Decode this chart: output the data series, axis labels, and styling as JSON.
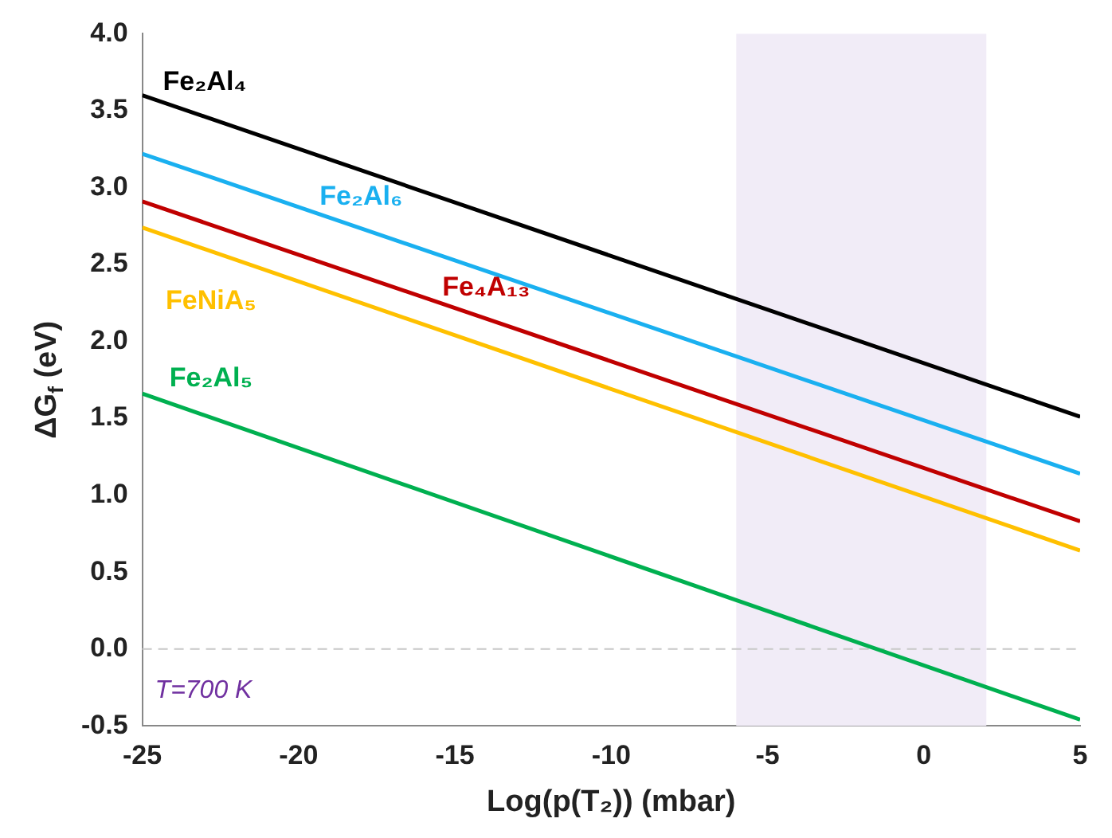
{
  "chart_data": {
    "type": "line",
    "xlabel": "Log(p(T₂)) (mbar)",
    "ylabel": "ΔG$_{f}$ (eV)",
    "x": [
      -25,
      5
    ],
    "series": [
      {
        "name": "Fe₂Al₄",
        "color": "#000000",
        "values": [
          3.6,
          1.51
        ]
      },
      {
        "name": "Fe₂Al₆",
        "color": "#1ab0f0",
        "values": [
          3.22,
          1.14
        ]
      },
      {
        "name": "Fe₄A₁₃",
        "color": "#c00000",
        "values": [
          2.91,
          0.83
        ]
      },
      {
        "name": "FeNiA₅",
        "color": "#ffc000",
        "values": [
          2.74,
          0.64
        ]
      },
      {
        "name": "Fe₂Al₅",
        "color": "#00b050",
        "values": [
          1.66,
          -0.46
        ]
      }
    ],
    "xlim": [
      -25,
      5
    ],
    "xticks": [
      -25,
      -20,
      -15,
      -10,
      -5,
      0,
      5
    ],
    "ylim": [
      -0.5,
      4
    ],
    "yticks": [
      {
        "value": -0.5,
        "label": "-0.5"
      },
      {
        "value": 0,
        "label": "0.0"
      },
      {
        "value": 0.5,
        "label": "0.5"
      },
      {
        "value": 1,
        "label": "1.0"
      },
      {
        "value": 1.5,
        "label": "1.5"
      },
      {
        "value": 2,
        "label": "2.0"
      },
      {
        "value": 2.5,
        "label": "2.5"
      },
      {
        "value": 3,
        "label": "3.0"
      },
      {
        "value": 3.5,
        "label": "3.5"
      },
      {
        "value": 4,
        "label": "4.0"
      }
    ],
    "ref_lines": [
      {
        "axis": "y",
        "value": 0,
        "color": "#c8c8c8",
        "line_style": "dashed"
      }
    ],
    "bands": [
      {
        "axis": "x",
        "from": -6,
        "to": 2,
        "color": "#f1ecf7"
      }
    ],
    "annotations": [
      "T=700 K"
    ],
    "grid": false,
    "legend": false,
    "marker": "none",
    "line_style": "solid"
  }
}
